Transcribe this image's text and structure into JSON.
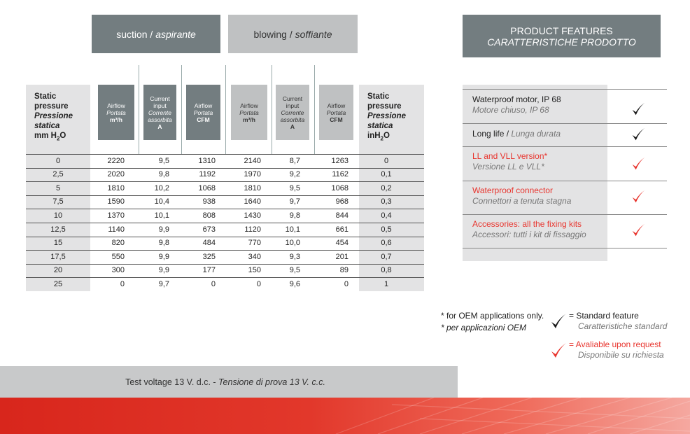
{
  "headers": {
    "suction": {
      "en": "suction / ",
      "it": "aspirante"
    },
    "blowing": {
      "en": "blowing / ",
      "it": "soffiante"
    },
    "features": {
      "en": "PRODUCT FEATURES",
      "it": "CARATTERISTICHE PRODOTTO"
    }
  },
  "table": {
    "static_left": {
      "l1": "Static",
      "l2": "pressure",
      "l3": "Pressione",
      "l4": "statica",
      "unit_a": "mm H",
      "unit_sub": "2",
      "unit_b": "O"
    },
    "static_right": {
      "l1": "Static",
      "l2": "pressure",
      "l3": "Pressione",
      "l4": "statica",
      "unit_a": "inH",
      "unit_sub": "2",
      "unit_b": "O"
    },
    "col_headers": [
      {
        "l1": "Airflow",
        "l2": "Portata",
        "l3": "m³/h"
      },
      {
        "l1": "Current",
        "l1b": "input",
        "l2": "Corrente",
        "l2b": "assorbita",
        "l3": "A"
      },
      {
        "l1": "Airflow",
        "l2": "Portata",
        "l3": "CFM"
      },
      {
        "l1": "Airflow",
        "l2": "Portata",
        "l3": "m³/h"
      },
      {
        "l1": "Current",
        "l1b": "input",
        "l2": "Corrente",
        "l2b": "assorbita",
        "l3": "A"
      },
      {
        "l1": "Airflow",
        "l2": "Portata",
        "l3": "CFM"
      }
    ],
    "rows": [
      [
        "0",
        "2220",
        "9,5",
        "1310",
        "2140",
        "8,7",
        "1263",
        "0"
      ],
      [
        "2,5",
        "2020",
        "9,8",
        "1192",
        "1970",
        "9,2",
        "1162",
        "0,1"
      ],
      [
        "5",
        "1810",
        "10,2",
        "1068",
        "1810",
        "9,5",
        "1068",
        "0,2"
      ],
      [
        "7,5",
        "1590",
        "10,4",
        "938",
        "1640",
        "9,7",
        "968",
        "0,3"
      ],
      [
        "10",
        "1370",
        "10,1",
        "808",
        "1430",
        "9,8",
        "844",
        "0,4"
      ],
      [
        "12,5",
        "1140",
        "9,9",
        "673",
        "1120",
        "10,1",
        "661",
        "0,5"
      ],
      [
        "15",
        "820",
        "9,8",
        "484",
        "770",
        "10,0",
        "454",
        "0,6"
      ],
      [
        "17,5",
        "550",
        "9,9",
        "325",
        "340",
        "9,3",
        "201",
        "0,7"
      ],
      [
        "20",
        "300",
        "9,9",
        "177",
        "150",
        "9,5",
        "89",
        "0,8"
      ],
      [
        "25",
        "0",
        "9,7",
        "0",
        "0",
        "9,6",
        "0",
        "1"
      ]
    ]
  },
  "features": [
    {
      "en": "Waterproof motor, IP 68",
      "it": "Motore chiuso, IP 68",
      "type": "standard"
    },
    {
      "en": "Long life / ",
      "it": "Lunga durata",
      "type": "standard"
    },
    {
      "en": "LL and VLL version*",
      "it": "Versione LL e VLL*",
      "type": "request"
    },
    {
      "en": "Waterproof connector",
      "it": "Connettori a tenuta stagna",
      "type": "request"
    },
    {
      "en": "Accessories: all the fixing kits",
      "it": "Accessori: tutti i kit di fissaggio",
      "type": "request"
    }
  ],
  "legend": {
    "oem_en": "* for OEM applications only.",
    "oem_it": "* per applicazioni OEM",
    "standard_en": "= Standard feature",
    "standard_it": "Caratteristiche standard",
    "request_en": "= Avaliable upon request",
    "request_it": "Disponibile su richiesta"
  },
  "footer": {
    "en": "Test voltage 13 V. d.c. - ",
    "it": "Tensione di prova 13 V. c.c."
  },
  "colors": {
    "header_dark": "#737d80",
    "header_light": "#bfc1c2",
    "accent_red": "#e8352e"
  },
  "icons": {
    "standard": "black-check-icon",
    "request": "red-check-icon"
  }
}
